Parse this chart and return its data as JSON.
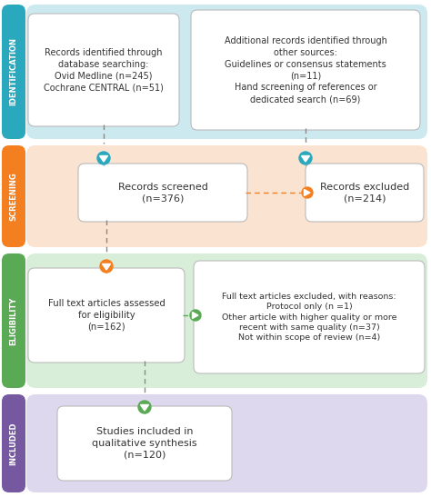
{
  "bg_colors": {
    "identification": "#cce9f0",
    "screening": "#fae3d0",
    "eligibility": "#d8eed8",
    "included": "#ddd8ee"
  },
  "label_colors": {
    "identification": "#29a8be",
    "screening": "#f47f20",
    "eligibility": "#5aaa55",
    "included": "#7558a0"
  },
  "label_texts": {
    "identification": "IDENTIFICATION",
    "screening": "SCREENING",
    "eligibility": "ELIGIBILITY",
    "included": "INCLUDED"
  },
  "box_texts": {
    "box1": "Records identified through\ndatabase searching:\nOvid Medline (n=245)\nCochrane CENTRAL (n=51)",
    "box2": "Additional records identified through\nother sources:\nGuidelines or consensus statements\n(n=11)\nHand screening of references or\ndedicated search (n=69)",
    "box3": "Records screened\n(n=376)",
    "box4": "Records excluded\n(n=214)",
    "box5": "Full text articles assessed\nfor eligibility\n(n=162)",
    "box6": "Full text articles excluded, with reasons:\nProtocol only (n =1)\nOther article with higher quality or more\nrecent with same quality (n=37)\nNot within scope of review (n=4)",
    "box7": "Studies included in\nqualitative synthesis\n(n=120)"
  },
  "arrow_colors": {
    "teal": "#29a8be",
    "orange": "#f47f20",
    "green": "#5aaa55"
  },
  "box_edge_color": "#bbbbbb",
  "box_face_color": "#ffffff",
  "text_color": "#333333"
}
